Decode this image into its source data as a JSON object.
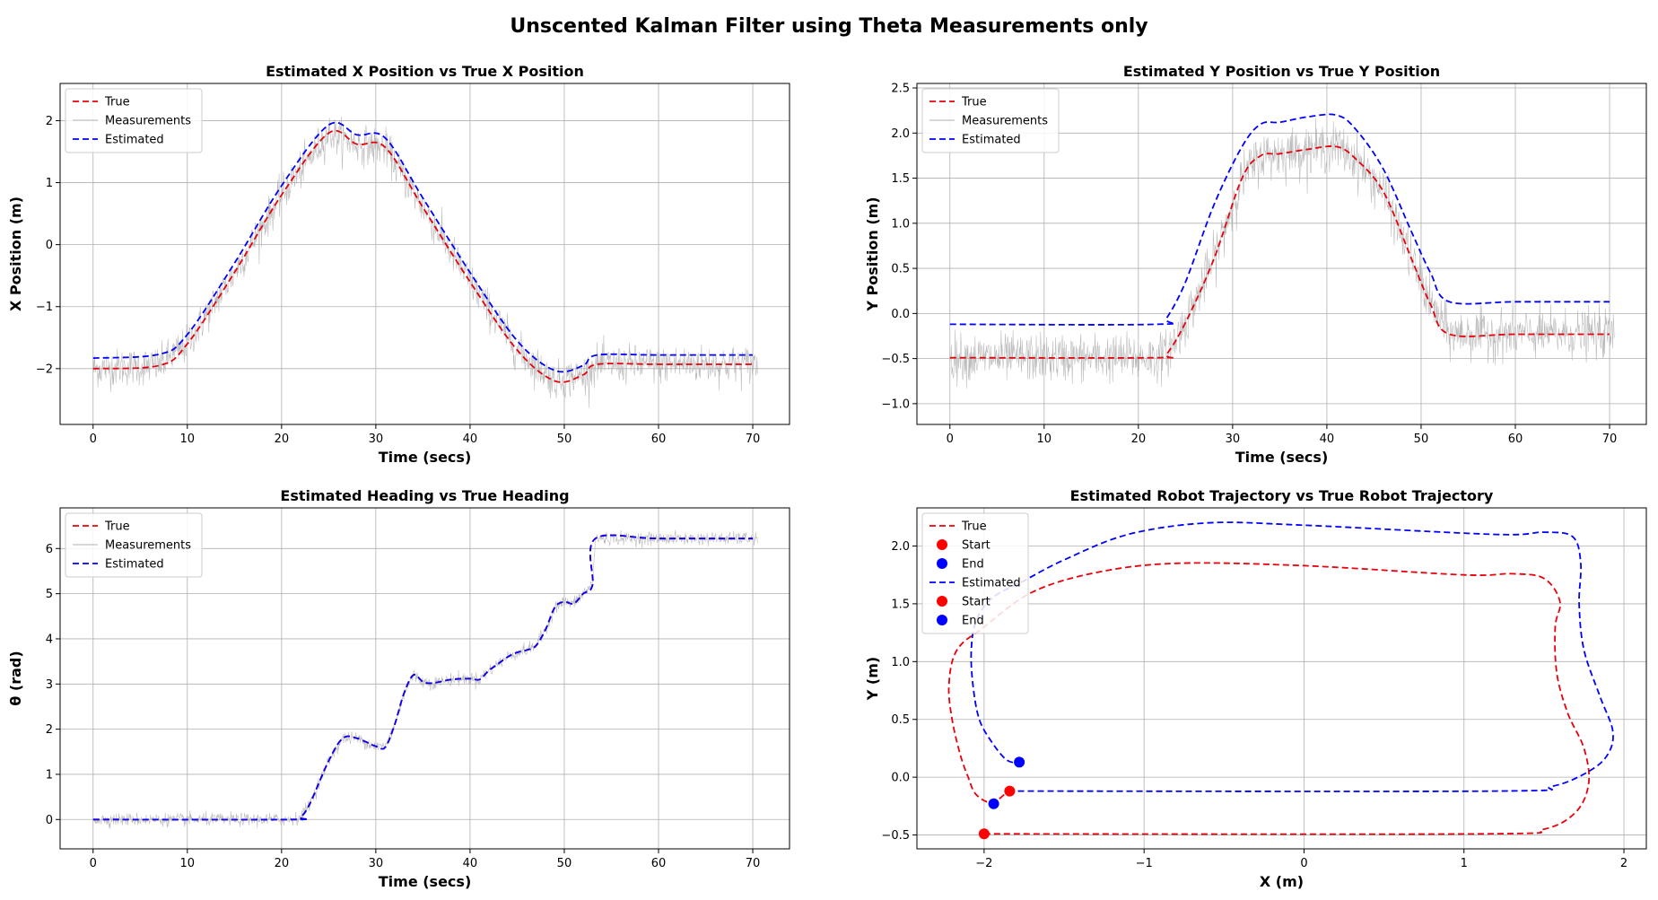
{
  "figure": {
    "title": "Unscented Kalman Filter using Theta Measurements only"
  },
  "colors": {
    "true": "#e8000b",
    "estimated": "#0000ff",
    "measurements": "#b0b0b0",
    "start": "#ff0000",
    "end": "#0000ff"
  },
  "chart_data": [
    {
      "type": "line",
      "title": "Estimated X Position vs True X Position",
      "xlabel": "Time (secs)",
      "ylabel": "X Position (m)",
      "xlim": [
        -3.5,
        73.9
      ],
      "ylim": [
        -2.9,
        2.6
      ],
      "xticks": [
        0,
        10,
        20,
        30,
        40,
        50,
        60,
        70
      ],
      "yticks": [
        -2,
        -1,
        0,
        1,
        2
      ],
      "ytick_labels": [
        "−2",
        "−1",
        "0",
        "1",
        "2"
      ],
      "grid": true,
      "legend_position": "top-left",
      "legend": [
        "True",
        "Measurements",
        "Estimated"
      ],
      "series": [
        {
          "name": "True",
          "style": "dashed",
          "color": "#e8000b",
          "x": [
            0,
            7,
            10,
            15,
            20,
            25,
            28,
            31,
            35,
            40,
            45,
            49,
            52,
            53.5,
            60,
            70
          ],
          "y": [
            -2.0,
            -1.95,
            -1.6,
            -0.45,
            0.8,
            1.8,
            1.62,
            1.57,
            0.6,
            -0.6,
            -1.7,
            -2.2,
            -2.1,
            -1.93,
            -1.93,
            -1.93
          ]
        },
        {
          "name": "Measurements",
          "style": "noise",
          "color": "#b0b0b0",
          "based_on": "True",
          "noise_sd": 0.15,
          "x_range": [
            0,
            70.5
          ]
        },
        {
          "name": "Estimated",
          "style": "dashed",
          "color": "#0000ff",
          "x": [
            0,
            7,
            10,
            15,
            20,
            25,
            28,
            31,
            35,
            40,
            45,
            49,
            52,
            53.5,
            60,
            70
          ],
          "y": [
            -1.83,
            -1.77,
            -1.45,
            -0.3,
            0.95,
            1.93,
            1.77,
            1.72,
            0.75,
            -0.45,
            -1.55,
            -2.03,
            -1.95,
            -1.78,
            -1.78,
            -1.78
          ]
        }
      ]
    },
    {
      "type": "line",
      "title": "Estimated Y Position vs True Y Position",
      "xlabel": "Time (secs)",
      "ylabel": "Y Position (m)",
      "xlim": [
        -3.5,
        73.9
      ],
      "ylim": [
        -1.23,
        2.55
      ],
      "xticks": [
        0,
        10,
        20,
        30,
        40,
        50,
        60,
        70
      ],
      "yticks": [
        -1.0,
        -0.5,
        0.0,
        0.5,
        1.0,
        1.5,
        2.0,
        2.5
      ],
      "ytick_labels": [
        "−1.0",
        "−0.5",
        "0.0",
        "0.5",
        "1.0",
        "1.5",
        "2.0",
        "2.5"
      ],
      "grid": true,
      "legend_position": "top-left",
      "legend": [
        "True",
        "Measurements",
        "Estimated"
      ],
      "series": [
        {
          "name": "True",
          "style": "dashed",
          "color": "#e8000b",
          "x": [
            0,
            22,
            23,
            25,
            28,
            31,
            33,
            35,
            38,
            41,
            43,
            46,
            49,
            51,
            53,
            60,
            70
          ],
          "y": [
            -0.49,
            -0.49,
            -0.45,
            -0.1,
            0.6,
            1.5,
            1.75,
            1.77,
            1.82,
            1.85,
            1.72,
            1.35,
            0.6,
            0.1,
            -0.23,
            -0.23,
            -0.23
          ]
        },
        {
          "name": "Measurements",
          "style": "noise",
          "color": "#b0b0b0",
          "based_on": "True",
          "noise_sd": 0.13,
          "x_range": [
            0,
            70.5
          ]
        },
        {
          "name": "Estimated",
          "style": "dashed",
          "color": "#0000ff",
          "x": [
            0,
            22,
            23,
            25,
            28,
            31,
            33,
            35,
            38,
            41,
            43,
            46,
            49,
            51,
            53,
            60,
            70
          ],
          "y": [
            -0.12,
            -0.12,
            -0.05,
            0.35,
            1.2,
            1.85,
            2.1,
            2.12,
            2.18,
            2.2,
            2.05,
            1.6,
            0.9,
            0.45,
            0.13,
            0.13,
            0.13
          ]
        }
      ]
    },
    {
      "type": "line",
      "title": "Estimated Heading vs True Heading",
      "xlabel": "Time (secs)",
      "ylabel": "θ (rad)",
      "xlim": [
        -3.5,
        73.9
      ],
      "ylim": [
        -0.65,
        6.9
      ],
      "xticks": [
        0,
        10,
        20,
        30,
        40,
        50,
        60,
        70
      ],
      "yticks": [
        0,
        1,
        2,
        3,
        4,
        5,
        6
      ],
      "ytick_labels": [
        "0",
        "1",
        "2",
        "3",
        "4",
        "5",
        "6"
      ],
      "grid": true,
      "legend_position": "top-left",
      "legend": [
        "True",
        "Measurements",
        "Estimated"
      ],
      "series": [
        {
          "name": "True",
          "style": "dashed",
          "color": "#e8000b",
          "x": [
            0,
            21,
            22,
            23,
            25,
            26.5,
            28,
            30,
            31,
            32,
            33,
            34,
            35,
            36,
            38,
            40,
            41,
            42,
            43,
            44,
            45,
            46,
            47,
            48,
            49,
            50,
            51,
            52,
            53,
            53.3,
            60,
            70
          ],
          "y": [
            0,
            0,
            0.05,
            0.35,
            1.3,
            1.8,
            1.8,
            1.62,
            1.6,
            2.1,
            2.8,
            3.2,
            3.05,
            3.02,
            3.1,
            3.12,
            3.1,
            3.3,
            3.45,
            3.6,
            3.7,
            3.75,
            3.85,
            4.2,
            4.7,
            4.82,
            4.78,
            5.0,
            5.2,
            6.22,
            6.22,
            6.22
          ]
        },
        {
          "name": "Measurements",
          "style": "noise",
          "color": "#b0b0b0",
          "based_on": "True",
          "noise_sd": 0.07,
          "x_range": [
            0,
            70.5
          ]
        },
        {
          "name": "Estimated",
          "style": "dashed",
          "color": "#0000ff",
          "x": [
            0,
            21,
            22,
            23,
            25,
            26.5,
            28,
            30,
            31,
            32,
            33,
            34,
            35,
            36,
            38,
            40,
            41,
            42,
            43,
            44,
            45,
            46,
            47,
            48,
            49,
            50,
            51,
            52,
            53,
            53.3,
            60,
            70
          ],
          "y": [
            0,
            0,
            0.05,
            0.35,
            1.3,
            1.8,
            1.8,
            1.62,
            1.6,
            2.1,
            2.8,
            3.2,
            3.05,
            3.02,
            3.1,
            3.12,
            3.1,
            3.3,
            3.45,
            3.6,
            3.7,
            3.75,
            3.85,
            4.2,
            4.7,
            4.82,
            4.78,
            5.0,
            5.2,
            6.22,
            6.22,
            6.22
          ]
        }
      ]
    },
    {
      "type": "line",
      "title": "Estimated Robot Trajectory vs True Robot Trajectory",
      "xlabel": "X (m)",
      "ylabel": "Y (m)",
      "xlim": [
        -2.42,
        2.14
      ],
      "ylim": [
        -0.62,
        2.33
      ],
      "xticks": [
        -2,
        -1,
        0,
        1,
        2
      ],
      "xtick_labels": [
        "−2",
        "−1",
        "0",
        "1",
        "2"
      ],
      "yticks": [
        -0.5,
        0.0,
        0.5,
        1.0,
        1.5,
        2.0
      ],
      "ytick_labels": [
        "−0.5",
        "0.0",
        "0.5",
        "1.0",
        "1.5",
        "2.0"
      ],
      "grid": true,
      "legend_position": "top-left",
      "legend": [
        "True",
        "Start",
        "End",
        "Estimated",
        "Start",
        "End"
      ],
      "series": [
        {
          "name": "True",
          "style": "dashed",
          "color": "#e8000b",
          "x": [
            -2.0,
            1.1,
            1.5,
            1.7,
            1.78,
            1.75,
            1.65,
            1.58,
            1.57,
            1.6,
            1.5,
            1.3,
            1.0,
            0.0,
            -0.8,
            -1.3,
            -1.7,
            -2.0,
            -2.17,
            -2.22,
            -2.2,
            -2.15,
            -2.1,
            -2.05,
            -1.95,
            -1.85
          ],
          "y": [
            -0.49,
            -0.49,
            -0.45,
            -0.3,
            -0.05,
            0.25,
            0.55,
            0.9,
            1.3,
            1.52,
            1.72,
            1.76,
            1.75,
            1.83,
            1.85,
            1.77,
            1.6,
            1.3,
            1.1,
            0.8,
            0.5,
            0.2,
            0.0,
            -0.15,
            -0.22,
            -0.12
          ]
        },
        {
          "name": "Estimated",
          "style": "dashed",
          "color": "#0000ff",
          "x": [
            -1.85,
            1.2,
            1.55,
            1.78,
            1.9,
            1.93,
            1.85,
            1.75,
            1.72,
            1.73,
            1.68,
            1.5,
            1.2,
            0.0,
            -0.6,
            -1.1,
            -1.5,
            -1.75,
            -1.95,
            -2.05,
            -2.08,
            -2.07,
            -2.03,
            -1.95,
            -1.86,
            -1.78
          ],
          "y": [
            -0.12,
            -0.12,
            -0.08,
            0.05,
            0.2,
            0.4,
            0.7,
            1.1,
            1.5,
            1.85,
            2.08,
            2.12,
            2.1,
            2.18,
            2.2,
            2.1,
            1.88,
            1.7,
            1.55,
            1.35,
            1.1,
            0.8,
            0.5,
            0.3,
            0.15,
            0.12
          ]
        }
      ],
      "markers": [
        {
          "name": "True Start",
          "x": -2.0,
          "y": -0.49,
          "color": "#ff0000"
        },
        {
          "name": "True End",
          "x": -1.94,
          "y": -0.23,
          "color": "#0000ff"
        },
        {
          "name": "Estimated Start",
          "x": -1.84,
          "y": -0.12,
          "color": "#ff0000"
        },
        {
          "name": "Estimated End",
          "x": -1.78,
          "y": 0.13,
          "color": "#0000ff"
        }
      ]
    }
  ]
}
